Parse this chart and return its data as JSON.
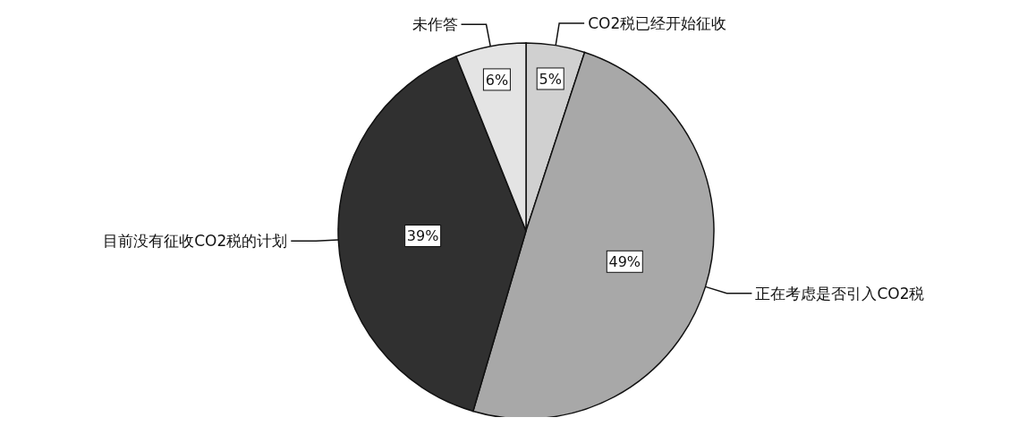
{
  "chart_data": {
    "type": "pie",
    "categories": [
      "CO2税已经开始征收",
      "正在考虑是否引入CO2税",
      "目前没有征收CO2税的计划",
      "未作答"
    ],
    "values": [
      5,
      49,
      39,
      6
    ],
    "colors": [
      "#d0d0d0",
      "#a8a8a8",
      "#303030",
      "#e4e4e4"
    ],
    "value_labels": [
      "5%",
      "49%",
      "39%",
      "6%"
    ]
  }
}
